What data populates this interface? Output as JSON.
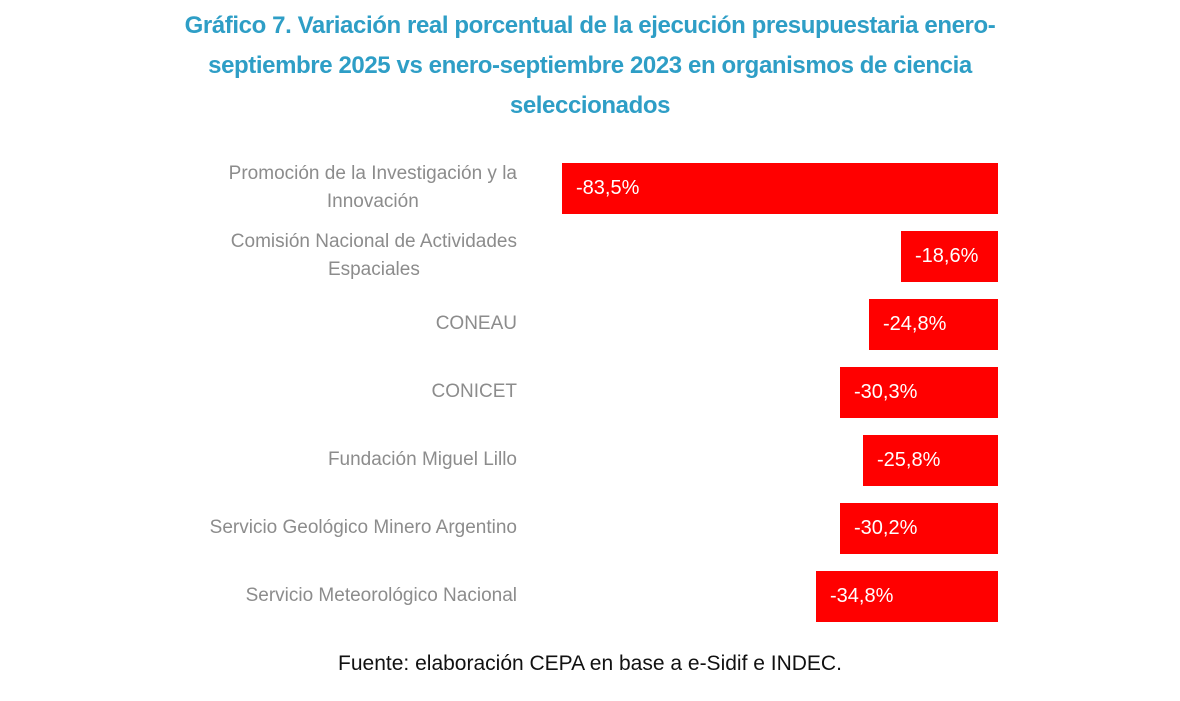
{
  "header": {
    "title": "Gráfico 7. Variación real porcentual de la ejecución presupuestaria enero-\nseptiembre 2025 vs enero-septiembre 2023 en organismos de ciencia\nseleccionados",
    "title_color": "#2e9ec6"
  },
  "chart_data": {
    "type": "bar",
    "orientation": "horizontal",
    "title": "Gráfico 7. Variación real porcentual de la ejecución presupuestaria enero-septiembre 2025 vs enero-septiembre 2023 en organismos de ciencia seleccionados",
    "categories": [
      "Promoción de la Investigación y la\nInnovación",
      "Comisión Nacional de Actividades\nEspaciales",
      "CONEAU",
      "CONICET",
      "Fundación Miguel Lillo",
      "Servicio Geológico Minero Argentino",
      "Servicio Meteorológico Nacional"
    ],
    "values": [
      -83.5,
      -18.6,
      -24.8,
      -30.3,
      -25.8,
      -30.2,
      -34.8
    ],
    "value_labels": [
      "-83,5%",
      "-18,6%",
      "-24,8%",
      "-30,3%",
      "-25,8%",
      "-30,2%",
      "-34,8%"
    ],
    "unit": "%",
    "xlim": [
      -92,
      0
    ],
    "baseline_side": "right",
    "axis_visible": false,
    "grid": false,
    "legend": false,
    "bar_color": "#ff0000",
    "value_label_color": "#ffffff",
    "value_label_position": "inside-left",
    "category_label_color": "#8c8c8c"
  },
  "footer": {
    "source_text": "Fuente: elaboración CEPA en base a e-Sidif e INDEC."
  }
}
